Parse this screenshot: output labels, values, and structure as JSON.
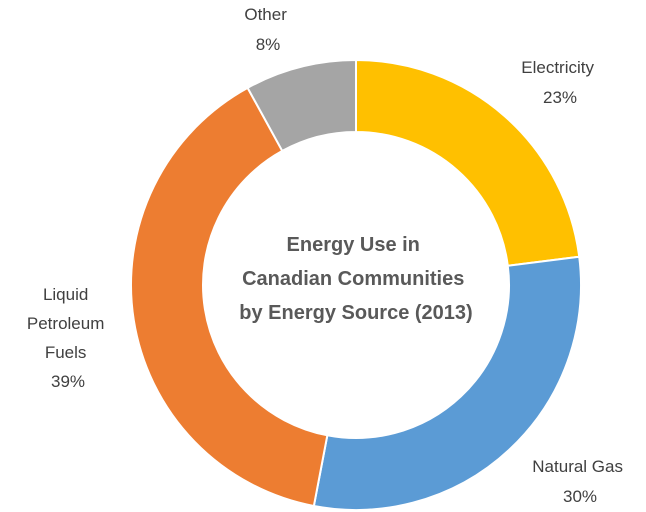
{
  "chart_data": {
    "type": "pie",
    "title_lines": [
      "Energy Use in",
      "Canadian Communities",
      "by Energy Source (2013)"
    ],
    "slices": [
      {
        "name": "Electricity",
        "label_lines": [
          "Electricity"
        ],
        "value": 23,
        "value_label": "23%",
        "color": "#FFC000"
      },
      {
        "name": "Natural Gas",
        "label_lines": [
          "Natural Gas"
        ],
        "value": 30,
        "value_label": "30%",
        "color": "#5B9BD5"
      },
      {
        "name": "Liquid Petroleum Fuels",
        "label_lines": [
          "Liquid",
          "Petroleum",
          "Fuels"
        ],
        "value": 39,
        "value_label": "39%",
        "color": "#ED7D31"
      },
      {
        "name": "Other",
        "label_lines": [
          "Other"
        ],
        "value": 8,
        "value_label": "8%",
        "color": "#A5A5A5"
      }
    ],
    "legend": "none",
    "hole": "donut"
  }
}
